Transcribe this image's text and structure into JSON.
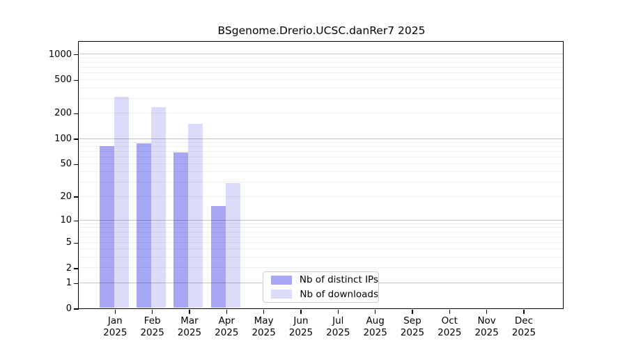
{
  "title": "BSgenome.Drerio.UCSC.danRer7 2025",
  "chart_data": {
    "type": "bar",
    "title": "BSgenome.Drerio.UCSC.danRer7 2025",
    "categories": [
      "Jan",
      "Feb",
      "Mar",
      "Apr",
      "May",
      "Jun",
      "Jul",
      "Aug",
      "Sep",
      "Oct",
      "Nov",
      "Dec"
    ],
    "x_year": "2025",
    "series": [
      {
        "name": "Nb of distinct IPs",
        "color": "#a7a7f3",
        "values": [
          81,
          87,
          67,
          15,
          0,
          0,
          0,
          0,
          0,
          0,
          0,
          0
        ]
      },
      {
        "name": "Nb of downloads",
        "color": "#dcdcfa",
        "values": [
          310,
          233,
          148,
          29,
          0,
          0,
          0,
          0,
          0,
          0,
          0,
          0
        ]
      }
    ],
    "y_ticks": [
      0,
      1,
      2,
      5,
      10,
      20,
      50,
      100,
      200,
      500,
      1000
    ],
    "y_scale": "log10(value+1)",
    "ylim": [
      0,
      1000
    ],
    "grid": "horizontal-minor-and-major",
    "legend_position": "inside-bottom-center",
    "colors": {
      "bar_distinct_ips": "#a7a7f3",
      "bar_downloads": "#dcdcfa",
      "major_gridline": "#c7c7c7",
      "minor_gridline": "#ebebeb",
      "frame": "#000000"
    }
  }
}
